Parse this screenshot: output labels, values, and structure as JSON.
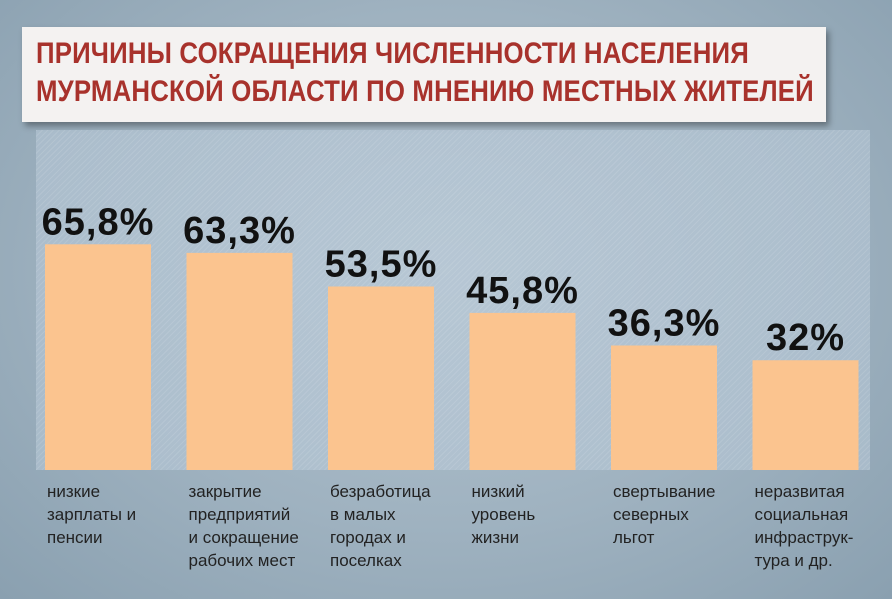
{
  "title": {
    "line1": "ПРИЧИНЫ СОКРАЩЕНИЯ ЧИСЛЕННОСТИ НАСЕЛЕНИЯ",
    "line2": "МУРМАНСКОЙ ОБЛАСТИ ПО МНЕНИЮ МЕСТНЫХ ЖИТЕЛЕЙ"
  },
  "colors": {
    "bar": "#fbc48f",
    "title_text": "#a8322c",
    "value_text": "#111111"
  },
  "chart_data": {
    "type": "bar",
    "title": "ПРИЧИНЫ СОКРАЩЕНИЯ ЧИСЛЕННОСТИ НАСЕЛЕНИЯ МУРМАНСКОЙ ОБЛАСТИ ПО МНЕНИЮ МЕСТНЫХ ЖИТЕЛЕЙ",
    "xlabel": "",
    "ylabel": "",
    "ylim": [
      0,
      100
    ],
    "categories": [
      [
        "низкие",
        "зарплаты и",
        "пенсии"
      ],
      [
        "закрытие",
        "предприятий",
        "и сокращение",
        "рабочих мест"
      ],
      [
        "безработица",
        "в малых",
        "городах и",
        "поселках"
      ],
      [
        "низкий",
        "уровень",
        "жизни"
      ],
      [
        "свертывание",
        "северных",
        "льгот"
      ],
      [
        "неразвитая",
        "социальная",
        "инфраструк-",
        "тура и др."
      ]
    ],
    "values": [
      65.8,
      63.3,
      53.5,
      45.8,
      36.3,
      32
    ],
    "value_labels": [
      "65,8%",
      "63,3%",
      "53,5%",
      "45,8%",
      "36,3%",
      "32%"
    ]
  }
}
